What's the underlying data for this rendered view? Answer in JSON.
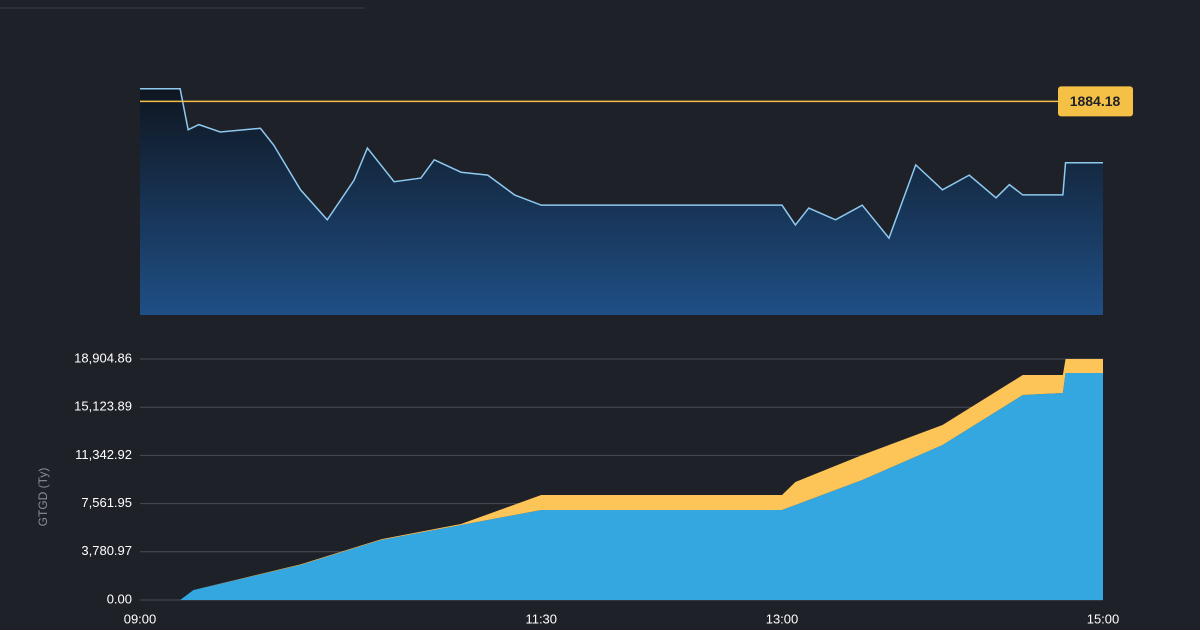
{
  "chart_data": [
    {
      "type": "line",
      "x": [
        "09:00",
        "09:15",
        "09:18",
        "09:22",
        "09:30",
        "09:45",
        "09:50",
        "10:00",
        "10:10",
        "10:20",
        "10:25",
        "10:35",
        "10:45",
        "10:50",
        "11:00",
        "11:10",
        "11:20",
        "11:30",
        "13:00",
        "13:05",
        "13:10",
        "13:20",
        "13:30",
        "13:40",
        "13:50",
        "14:00",
        "14:10",
        "14:20",
        "14:25",
        "14:30",
        "14:45",
        "14:46",
        "15:00"
      ],
      "values": [
        1885.9,
        1885.9,
        1880.3,
        1881.0,
        1880.0,
        1880.5,
        1878.2,
        1872.1,
        1868.0,
        1873.4,
        1877.8,
        1873.2,
        1873.7,
        1876.2,
        1874.5,
        1874.1,
        1871.4,
        1870.0,
        1870.0,
        1867.3,
        1869.6,
        1868.0,
        1870.0,
        1865.5,
        1875.5,
        1872.1,
        1874.1,
        1871.0,
        1872.8,
        1871.4,
        1871.4,
        1875.8,
        1875.8
      ],
      "color": "#8ec9f0",
      "ylim": [
        1855,
        1886
      ],
      "annotation": {
        "value": 1884.18,
        "label": "1884.18",
        "color": "#f5c046"
      }
    },
    {
      "type": "area",
      "stacked": true,
      "y_label": "GTGD (Ty)",
      "x": [
        "09:00",
        "09:15",
        "09:20",
        "10:00",
        "10:30",
        "11:00",
        "11:30",
        "13:00",
        "13:05",
        "13:30",
        "14:00",
        "14:30",
        "14:45",
        "14:46",
        "15:00"
      ],
      "series": [
        {
          "color": "#34a6e0",
          "values": [
            0,
            0,
            784,
            2746,
            4707,
            5884,
            7060,
            7060,
            7453,
            9414,
            12160,
            16082,
            16239,
            17808,
            17808
          ]
        },
        {
          "color": "#fdc457",
          "values": [
            0,
            0,
            0,
            50,
            50,
            80,
            1177,
            1177,
            1804,
            1961,
            1569,
            1569,
            1412,
            1098,
            1098
          ]
        }
      ],
      "ylim": [
        0,
        18904.86
      ],
      "yticks": [
        {
          "value": 0,
          "label": "0.00"
        },
        {
          "value": 3780.97,
          "label": "3,780.97"
        },
        {
          "value": 7561.95,
          "label": "7,561.95"
        },
        {
          "value": 11342.92,
          "label": "11,342.92"
        },
        {
          "value": 15123.89,
          "label": "15,123.89"
        },
        {
          "value": 18904.86,
          "label": "18,904.86"
        }
      ],
      "xticks": [
        "09:00",
        "11:30",
        "13:00",
        "15:00"
      ],
      "grid": true
    }
  ]
}
